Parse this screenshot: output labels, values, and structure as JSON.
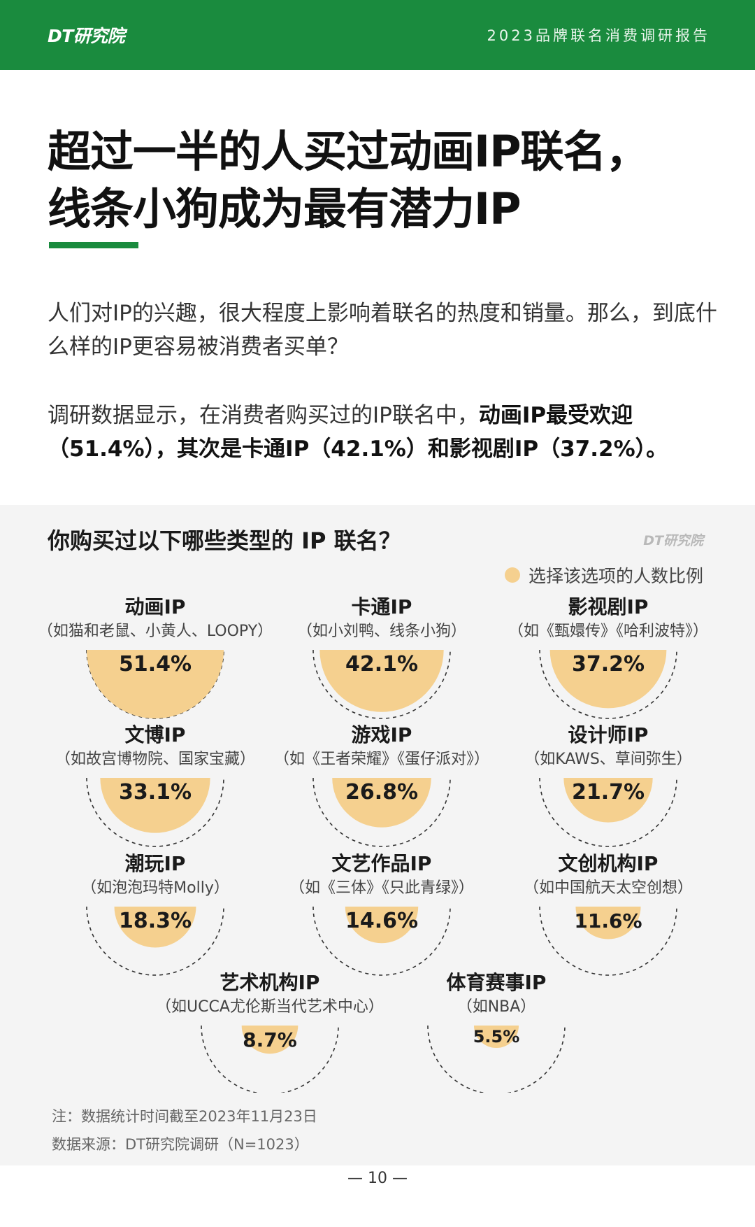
{
  "header": {
    "brand": "DT研究院",
    "report_title": "2023品牌联名消费调研报告"
  },
  "headline": {
    "line1": "超过一半的人买过动画IP联名，",
    "line2": "线条小狗成为最有潜力IP"
  },
  "intro": {
    "p1": "人们对IP的兴趣，很大程度上影响着联名的热度和销量。那么，到底什么样的IP更容易被消费者买单？",
    "p2_plain": "调研数据显示，在消费者购买过的IP联名中，",
    "p2_bold": "动画IP最受欢迎（51.4%），其次是卡通IP（42.1%）和影视剧IP（37.2%）。"
  },
  "chart": {
    "watermark": "DT研究院",
    "legend": "选择该选项的人数比例",
    "colors": {
      "fill": "#f5d08f",
      "outline": "#333333"
    },
    "note": "注：数据统计时间截至2023年11月23日",
    "source": "数据来源：DT研究院调研（N=1023）"
  },
  "chart_data": {
    "type": "bar",
    "title": "你购买过以下哪些类型的 IP 联名？",
    "series": [
      {
        "name": "选择该选项的人数比例",
        "values": [
          51.4,
          42.1,
          37.2,
          33.1,
          26.8,
          21.7,
          18.3,
          14.6,
          11.6,
          8.7,
          5.5
        ]
      }
    ],
    "categories": [
      "动画IP",
      "卡通IP",
      "影视剧IP",
      "文博IP",
      "游戏IP",
      "设计师IP",
      "潮玩IP",
      "文艺作品IP",
      "文创机构IP",
      "艺术机构IP",
      "体育赛事IP"
    ],
    "examples": [
      "（如猫和老鼠、小黄人、LOOPY）",
      "（如小刘鸭、线条小狗）",
      "（如《甄嬛传》《哈利波特》）",
      "（如故宫博物院、国家宝藏）",
      "（如《王者荣耀》《蛋仔派对》）",
      "（如KAWS、草间弥生）",
      "（如泡泡玛特Molly）",
      "（如《三体》《只此青绿》）",
      "（如中国航天太空创想）",
      "（如UCCA尤伦斯当代艺术中心）",
      "（如NBA）"
    ],
    "value_labels": [
      "51.4%",
      "42.1%",
      "37.2%",
      "33.1%",
      "26.8%",
      "21.7%",
      "18.3%",
      "14.6%",
      "11.6%",
      "8.7%",
      "5.5%"
    ],
    "unit": "%"
  },
  "footer": {
    "page": "— 10 —"
  }
}
